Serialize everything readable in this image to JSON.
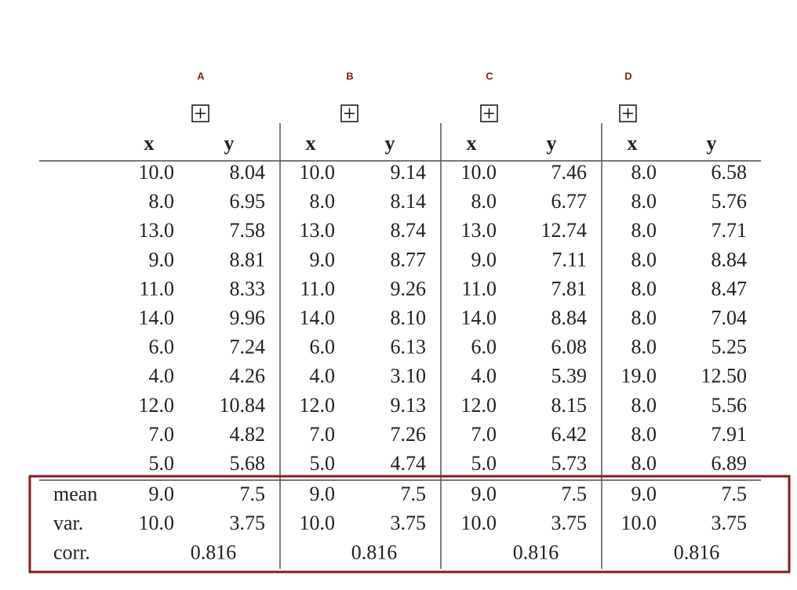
{
  "table": {
    "groups": [
      "A",
      "B",
      "C",
      "D"
    ],
    "header": [
      "x",
      "y",
      "x",
      "y",
      "x",
      "y",
      "x",
      "y"
    ],
    "rows": [
      [
        "10.0",
        "8.04",
        "10.0",
        "9.14",
        "10.0",
        "7.46",
        "8.0",
        "6.58"
      ],
      [
        "8.0",
        "6.95",
        "8.0",
        "8.14",
        "8.0",
        "6.77",
        "8.0",
        "5.76"
      ],
      [
        "13.0",
        "7.58",
        "13.0",
        "8.74",
        "13.0",
        "12.74",
        "8.0",
        "7.71"
      ],
      [
        "9.0",
        "8.81",
        "9.0",
        "8.77",
        "9.0",
        "7.11",
        "8.0",
        "8.84"
      ],
      [
        "11.0",
        "8.33",
        "11.0",
        "9.26",
        "11.0",
        "7.81",
        "8.0",
        "8.47"
      ],
      [
        "14.0",
        "9.96",
        "14.0",
        "8.10",
        "14.0",
        "8.84",
        "8.0",
        "7.04"
      ],
      [
        "6.0",
        "7.24",
        "6.0",
        "6.13",
        "6.0",
        "6.08",
        "8.0",
        "5.25"
      ],
      [
        "4.0",
        "4.26",
        "4.0",
        "3.10",
        "4.0",
        "5.39",
        "19.0",
        "12.50"
      ],
      [
        "12.0",
        "10.84",
        "12.0",
        "9.13",
        "12.0",
        "8.15",
        "8.0",
        "5.56"
      ],
      [
        "7.0",
        "4.82",
        "7.0",
        "7.26",
        "7.0",
        "6.42",
        "8.0",
        "7.91"
      ],
      [
        "5.0",
        "5.68",
        "5.0",
        "4.74",
        "5.0",
        "5.73",
        "8.0",
        "6.89"
      ]
    ],
    "stats": [
      {
        "label": "mean",
        "values": [
          "9.0",
          "7.5",
          "9.0",
          "7.5",
          "9.0",
          "7.5",
          "9.0",
          "7.5"
        ]
      },
      {
        "label": "var.",
        "values": [
          "10.0",
          "3.75",
          "10.0",
          "3.75",
          "10.0",
          "3.75",
          "10.0",
          "3.75"
        ]
      },
      {
        "label": "corr.",
        "values": [
          "0.816",
          "0.816",
          "0.816",
          "0.816"
        ]
      }
    ]
  }
}
